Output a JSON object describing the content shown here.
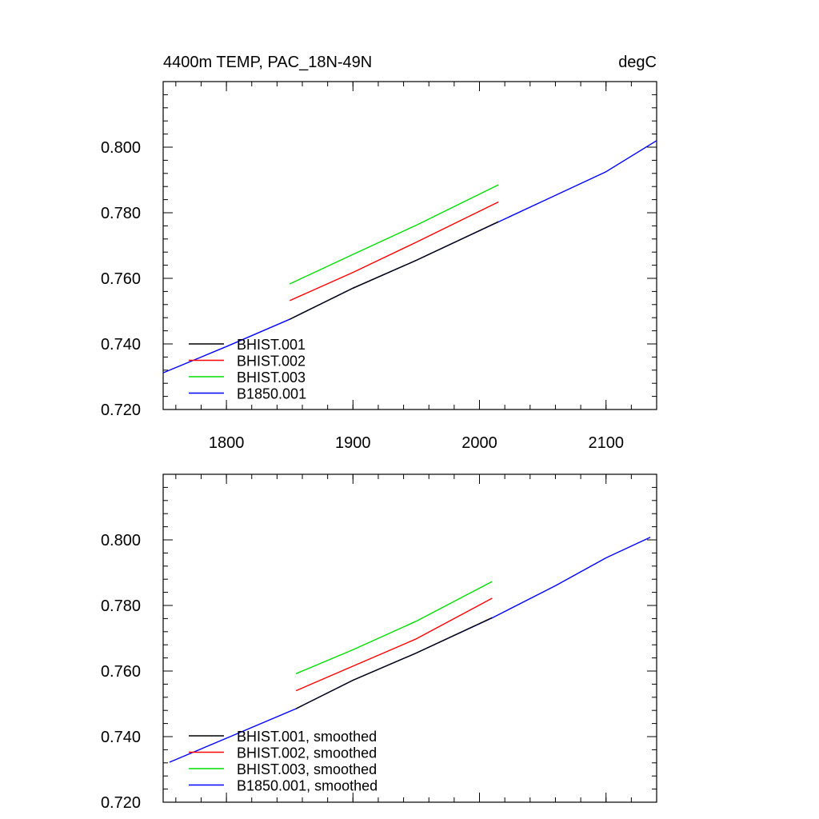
{
  "chart_data": [
    {
      "type": "line",
      "title": "4400m TEMP, PAC_18N-49N",
      "title_right": "degC",
      "xlim": [
        1750,
        2140
      ],
      "ylim": [
        0.72,
        0.82
      ],
      "xticks": [
        1800,
        1900,
        2000,
        2100
      ],
      "xtick_labels": [
        "1800",
        "1900",
        "2000",
        "2100"
      ],
      "yticks": [
        0.72,
        0.74,
        0.76,
        0.78,
        0.8
      ],
      "ytick_labels": [
        "0.720",
        "0.740",
        "0.760",
        "0.780",
        "0.800"
      ],
      "legend_position": "bottom-left",
      "series": [
        {
          "name": "BHIST.001",
          "color": "#000000",
          "x": [
            1850,
            1900,
            1950,
            2015
          ],
          "y": [
            0.7475,
            0.757,
            0.7655,
            0.7773
          ]
        },
        {
          "name": "BHIST.002",
          "color": "#ff0000",
          "x": [
            1850,
            1900,
            1950,
            2015
          ],
          "y": [
            0.7532,
            0.7618,
            0.771,
            0.7833
          ]
        },
        {
          "name": "BHIST.003",
          "color": "#00dd00",
          "x": [
            1850,
            1900,
            1950,
            2015
          ],
          "y": [
            0.7583,
            0.7673,
            0.7762,
            0.7885
          ]
        },
        {
          "name": "B1850.001",
          "color": "#0000ff",
          "x": [
            1750,
            1800,
            1850,
            1900,
            1950,
            2000,
            2050,
            2100,
            2140
          ],
          "y": [
            0.7312,
            0.7392,
            0.7475,
            0.757,
            0.7655,
            0.7745,
            0.7835,
            0.7925,
            0.802
          ]
        }
      ]
    },
    {
      "type": "line",
      "xlim": [
        1750,
        2140
      ],
      "ylim": [
        0.72,
        0.82
      ],
      "xticks": [
        1800,
        1900,
        2000,
        2100
      ],
      "yticks": [
        0.72,
        0.74,
        0.76,
        0.78,
        0.8
      ],
      "ytick_labels": [
        "0.720",
        "0.740",
        "0.760",
        "0.780",
        "0.800"
      ],
      "legend_position": "bottom-left",
      "series": [
        {
          "name": "BHIST.001, smoothed",
          "color": "#000000",
          "x": [
            1855,
            1900,
            1950,
            2010
          ],
          "y": [
            0.7485,
            0.7572,
            0.7655,
            0.7763
          ]
        },
        {
          "name": "BHIST.002, smoothed",
          "color": "#ff0000",
          "x": [
            1855,
            1900,
            1950,
            2010
          ],
          "y": [
            0.754,
            0.7615,
            0.7698,
            0.7822
          ]
        },
        {
          "name": "BHIST.003, smoothed",
          "color": "#00dd00",
          "x": [
            1855,
            1900,
            1950,
            2010
          ],
          "y": [
            0.7592,
            0.7665,
            0.7752,
            0.7873
          ]
        },
        {
          "name": "B1850.001, smoothed",
          "color": "#0000ff",
          "x": [
            1755,
            1800,
            1855,
            1900,
            1950,
            2010,
            2060,
            2100,
            2135
          ],
          "y": [
            0.7322,
            0.7395,
            0.7485,
            0.7572,
            0.7655,
            0.7762,
            0.786,
            0.7945,
            0.8008
          ]
        }
      ]
    }
  ]
}
